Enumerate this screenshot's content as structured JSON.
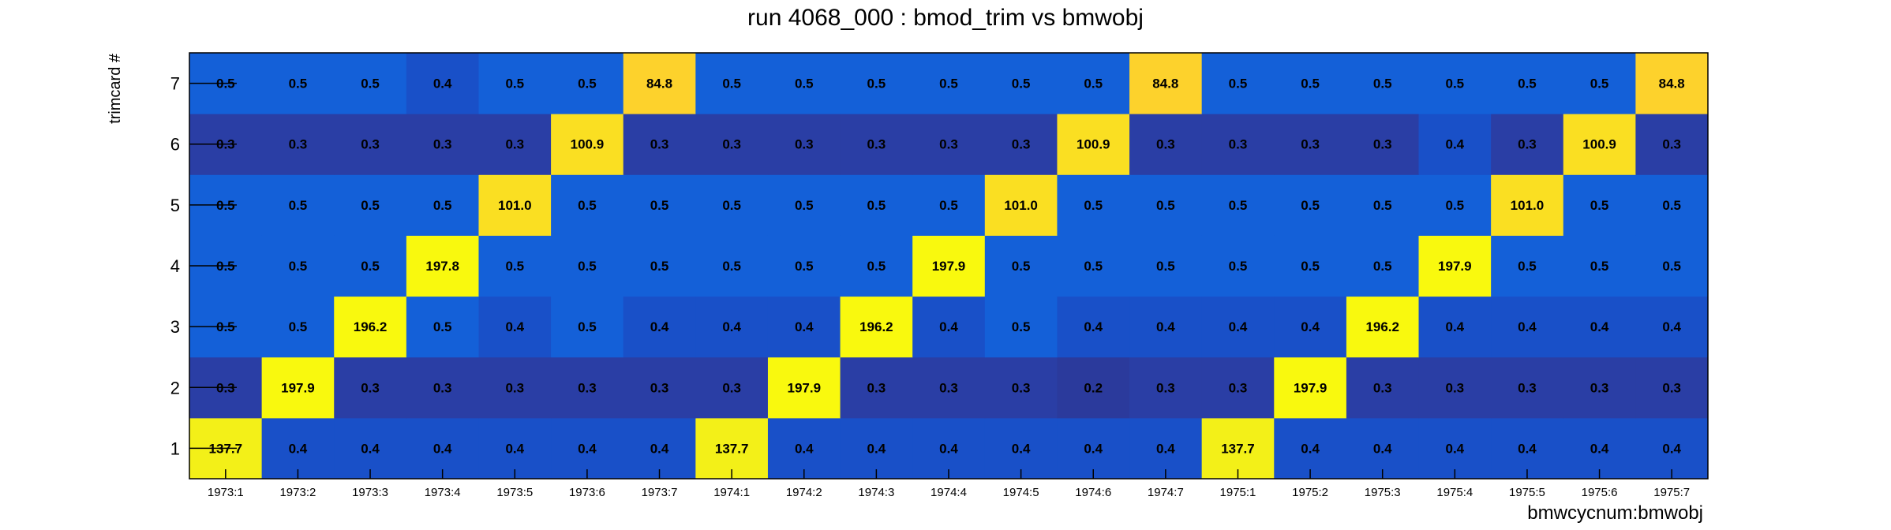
{
  "chart_data": {
    "type": "heatmap",
    "title": "run 4068_000 : bmod_trim vs bmwobj",
    "xlabel": "bmwcycnum:bmwobj",
    "ylabel": "trimcard #",
    "x_categories": [
      "1973:1",
      "1973:2",
      "1973:3",
      "1973:4",
      "1973:5",
      "1973:6",
      "1973:7",
      "1974:1",
      "1974:2",
      "1974:3",
      "1974:4",
      "1974:5",
      "1974:6",
      "1974:7",
      "1975:1",
      "1975:2",
      "1975:3",
      "1975:4",
      "1975:5",
      "1975:6",
      "1975:7"
    ],
    "y_categories": [
      "1",
      "2",
      "3",
      "4",
      "5",
      "6",
      "7"
    ],
    "values": [
      [
        137.7,
        0.4,
        0.4,
        0.4,
        0.4,
        0.4,
        0.4,
        137.7,
        0.4,
        0.4,
        0.4,
        0.4,
        0.4,
        0.4,
        137.7,
        0.4,
        0.4,
        0.4,
        0.4,
        0.4,
        0.4
      ],
      [
        0.3,
        197.9,
        0.3,
        0.3,
        0.3,
        0.3,
        0.3,
        0.3,
        197.9,
        0.3,
        0.3,
        0.3,
        0.2,
        0.3,
        0.3,
        197.9,
        0.3,
        0.3,
        0.3,
        0.3,
        0.3
      ],
      [
        0.5,
        0.5,
        196.2,
        0.5,
        0.4,
        0.5,
        0.4,
        0.4,
        0.4,
        196.2,
        0.4,
        0.5,
        0.4,
        0.4,
        0.4,
        0.4,
        196.2,
        0.4,
        0.4,
        0.4,
        0.4
      ],
      [
        0.5,
        0.5,
        0.5,
        197.8,
        0.5,
        0.5,
        0.5,
        0.5,
        0.5,
        0.5,
        197.9,
        0.5,
        0.5,
        0.5,
        0.5,
        0.5,
        0.5,
        197.9,
        0.5,
        0.5,
        0.5
      ],
      [
        0.5,
        0.5,
        0.5,
        0.5,
        101.0,
        0.5,
        0.5,
        0.5,
        0.5,
        0.5,
        0.5,
        101.0,
        0.5,
        0.5,
        0.5,
        0.5,
        0.5,
        0.5,
        101.0,
        0.5,
        0.5
      ],
      [
        0.3,
        0.3,
        0.3,
        0.3,
        0.3,
        100.9,
        0.3,
        0.3,
        0.3,
        0.3,
        0.3,
        0.3,
        100.9,
        0.3,
        0.3,
        0.3,
        0.3,
        0.4,
        0.3,
        100.9,
        0.3
      ],
      [
        0.5,
        0.5,
        0.5,
        0.4,
        0.5,
        0.5,
        84.8,
        0.5,
        0.5,
        0.5,
        0.5,
        0.5,
        0.5,
        84.8,
        0.5,
        0.5,
        0.5,
        0.5,
        0.5,
        0.5,
        84.8
      ]
    ],
    "colors": {
      "low_0.2": "#2b3a9c",
      "low_0.3": "#2a3ea5",
      "low_0.4": "#1950c8",
      "low_0.5": "#1460d8",
      "mid_84.8": "#fdd22c",
      "mid_100.9": "#fadf22",
      "high_137.7": "#f3f018",
      "high_196": "#f9f90e"
    }
  }
}
